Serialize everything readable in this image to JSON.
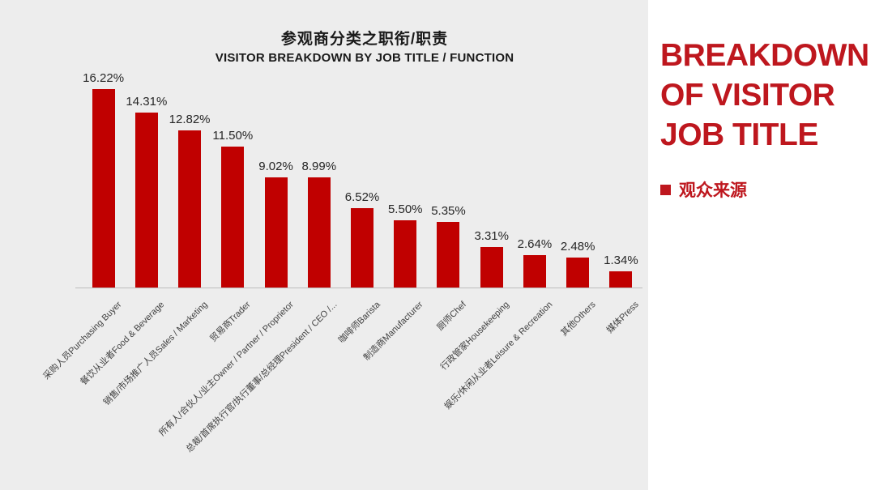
{
  "colors": {
    "page_bg": "#EDEDED",
    "panel_bg": "#FFFFFF",
    "bar": "#C00000",
    "accent": "#BE171E",
    "axis_line": "#BDBDBD",
    "title_text": "#1A1A1A",
    "value_text": "#262626",
    "category_text": "#404040"
  },
  "chart": {
    "title_zh": "参观商分类之职衔/职责",
    "title_en": "VISITOR BREAKDOWN BY JOB TITLE / FUNCTION"
  },
  "chart_data": {
    "type": "bar",
    "title": "参观商分类之职衔/职责",
    "subtitle": "VISITOR BREAKDOWN BY JOB TITLE / FUNCTION",
    "categories": [
      "采购人员Purchasing Buyer",
      "餐饮从业者Food & Beverage",
      "销售/市场推广人员Sales / Marketing",
      "贸易商Trader",
      "所有人/合伙人/业主Owner / Partner / Proprietor",
      "总裁/首席执行官/执行董事/总经理President / CEO /...",
      "咖啡师Barista",
      "制造商Manufacturer",
      "厨师Chef",
      "行政管家Housekeeping",
      "娱乐/休闲从业者Leisure & Recreation",
      "其他Others",
      "媒体Press"
    ],
    "values": [
      16.22,
      14.31,
      12.82,
      11.5,
      9.02,
      8.99,
      6.52,
      5.5,
      5.35,
      3.31,
      2.64,
      2.48,
      1.34
    ],
    "value_labels": [
      "16.22%",
      "14.31%",
      "12.82%",
      "11.50%",
      "9.02%",
      "8.99%",
      "6.52%",
      "5.50%",
      "5.35%",
      "3.31%",
      "2.64%",
      "2.48%",
      "1.34%"
    ],
    "xlabel": "",
    "ylabel": "",
    "ylim": [
      0,
      17
    ],
    "grid": false,
    "legend_position": "none",
    "bar_color": "#C00000",
    "category_label_rotation_deg": 45
  },
  "sidebar": {
    "heading": "BREAKDOWN OF VISITOR JOB TITLE",
    "legend_marker": "■",
    "legend_label": "观众来源"
  }
}
